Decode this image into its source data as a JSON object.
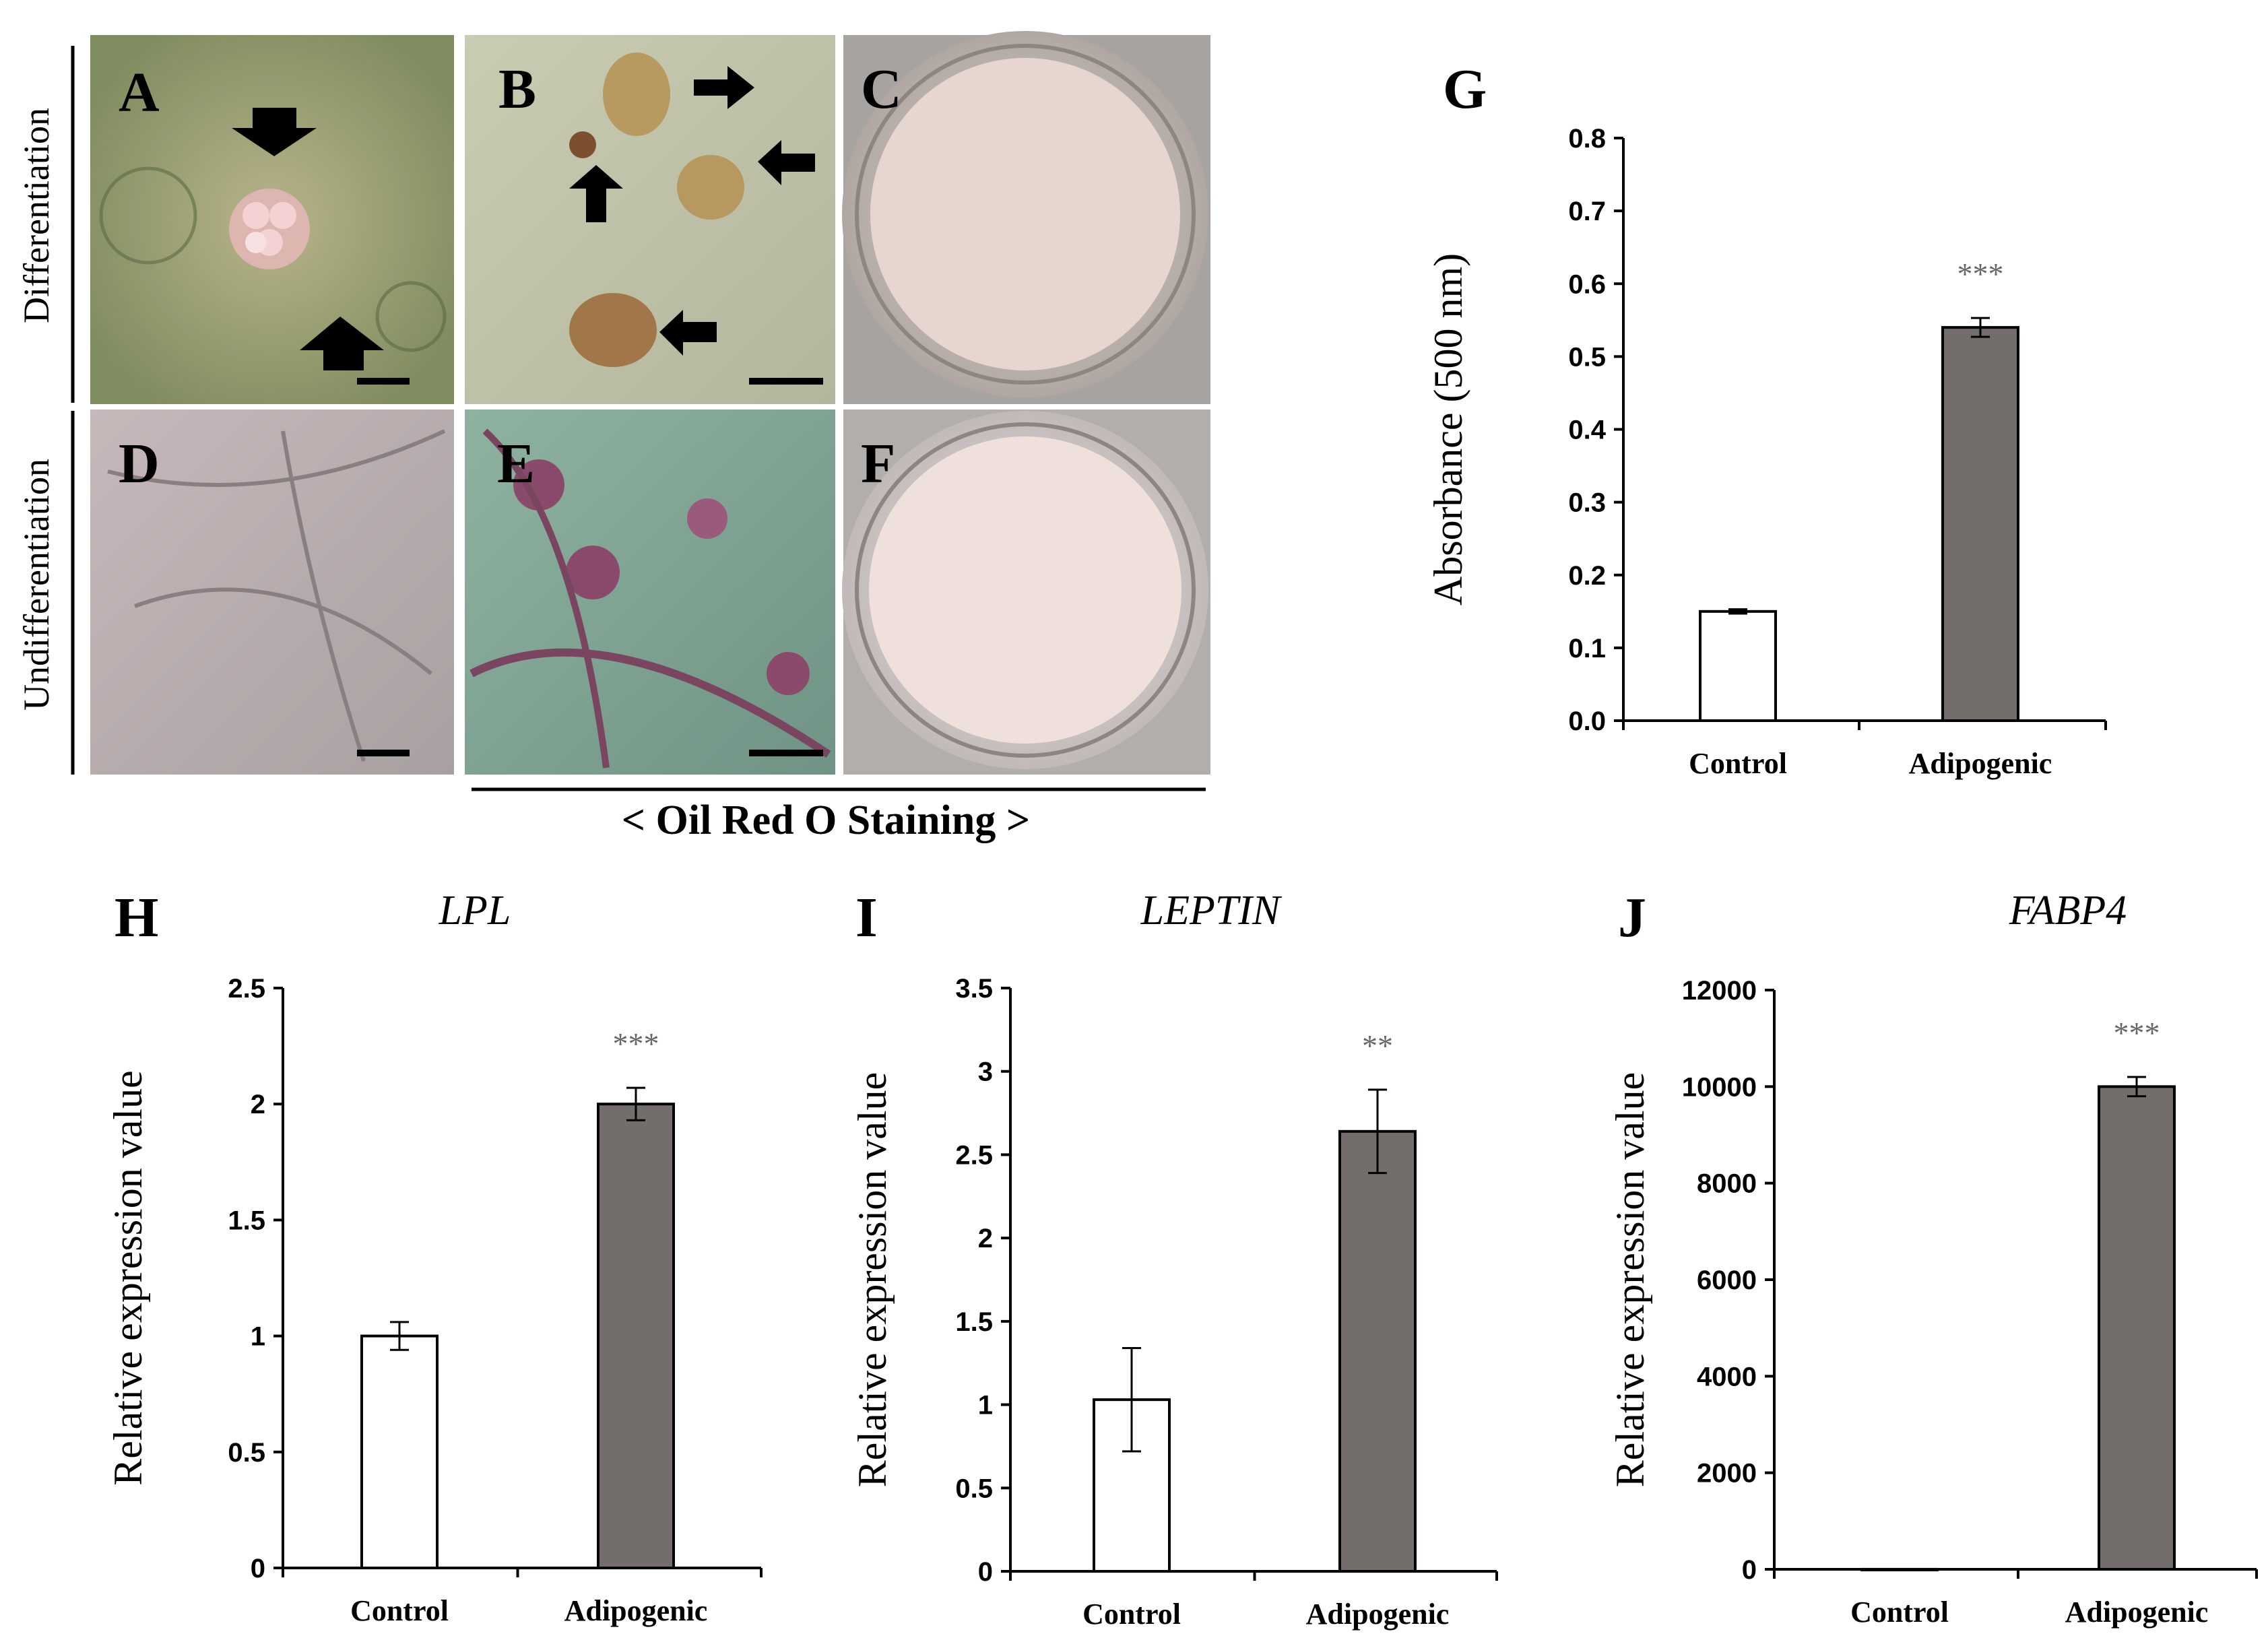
{
  "micrographs": {
    "rows": [
      {
        "label": "Differentiation",
        "panels": [
          "A",
          "B",
          "C"
        ]
      },
      {
        "label": "Undifferentiation",
        "panels": [
          "D",
          "E",
          "F"
        ]
      }
    ],
    "staining_label": "< Oil Red O Staining >"
  },
  "colors": {
    "control_bar": "#ffffff",
    "adipogenic_bar": "#736e6b",
    "axis": "#000000",
    "significance": "#666666"
  },
  "chart_data": [
    {
      "panel_letter": "G",
      "type": "bar",
      "title": "",
      "categories": [
        "Control",
        "Adipogenic"
      ],
      "values": [
        0.15,
        0.54
      ],
      "errors": [
        0.003,
        0.013
      ],
      "significance": [
        "",
        "***"
      ],
      "ylabel": "Absorbance (500 nm)",
      "ylim": [
        0,
        0.8
      ],
      "yticks": [
        "0.0",
        "0.1",
        "0.2",
        "0.3",
        "0.4",
        "0.5",
        "0.6",
        "0.7",
        "0.8"
      ],
      "grid": false
    },
    {
      "panel_letter": "H",
      "type": "bar",
      "title": "LPL",
      "categories": [
        "Control",
        "Adipogenic"
      ],
      "values": [
        1.0,
        2.0
      ],
      "errors": [
        0.06,
        0.07
      ],
      "significance": [
        "",
        "***"
      ],
      "ylabel": "Relative expression value",
      "ylim": [
        0,
        2.5
      ],
      "yticks": [
        "0",
        "0.5",
        "1",
        "1.5",
        "2",
        "2.5"
      ],
      "grid": false
    },
    {
      "panel_letter": "I",
      "type": "bar",
      "title": "LEPTIN",
      "categories": [
        "Control",
        "Adipogenic"
      ],
      "values": [
        1.03,
        2.64
      ],
      "errors": [
        0.31,
        0.25
      ],
      "significance": [
        "",
        "**"
      ],
      "ylabel": "Relative expression value",
      "ylim": [
        0,
        3.5
      ],
      "yticks": [
        "0",
        "0.5",
        "1",
        "1.5",
        "2",
        "2.5",
        "3",
        "3.5"
      ],
      "grid": false
    },
    {
      "panel_letter": "J",
      "type": "bar",
      "title": "FABP4",
      "categories": [
        "Control",
        "Adipogenic"
      ],
      "values": [
        1,
        10000
      ],
      "errors": [
        0,
        200
      ],
      "significance": [
        "",
        "***"
      ],
      "ylabel": "Relative expression value",
      "ylim": [
        0,
        12000
      ],
      "yticks": [
        "0",
        "2000",
        "4000",
        "6000",
        "8000",
        "10000",
        "12000"
      ],
      "grid": false
    }
  ]
}
